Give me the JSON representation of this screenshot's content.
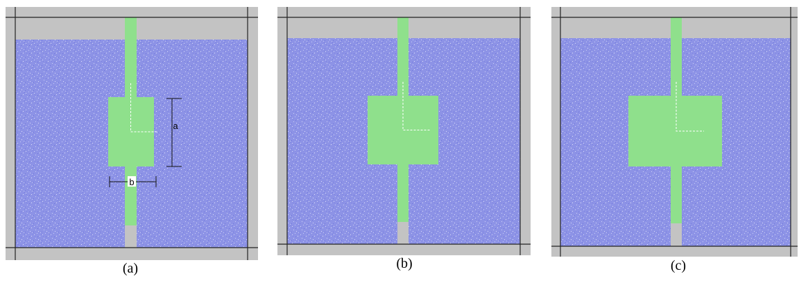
{
  "panels": [
    {
      "caption": "(a)",
      "dimension_labels": [
        "a",
        "b"
      ]
    },
    {
      "caption": "(b)"
    },
    {
      "caption": "(c)"
    }
  ]
}
